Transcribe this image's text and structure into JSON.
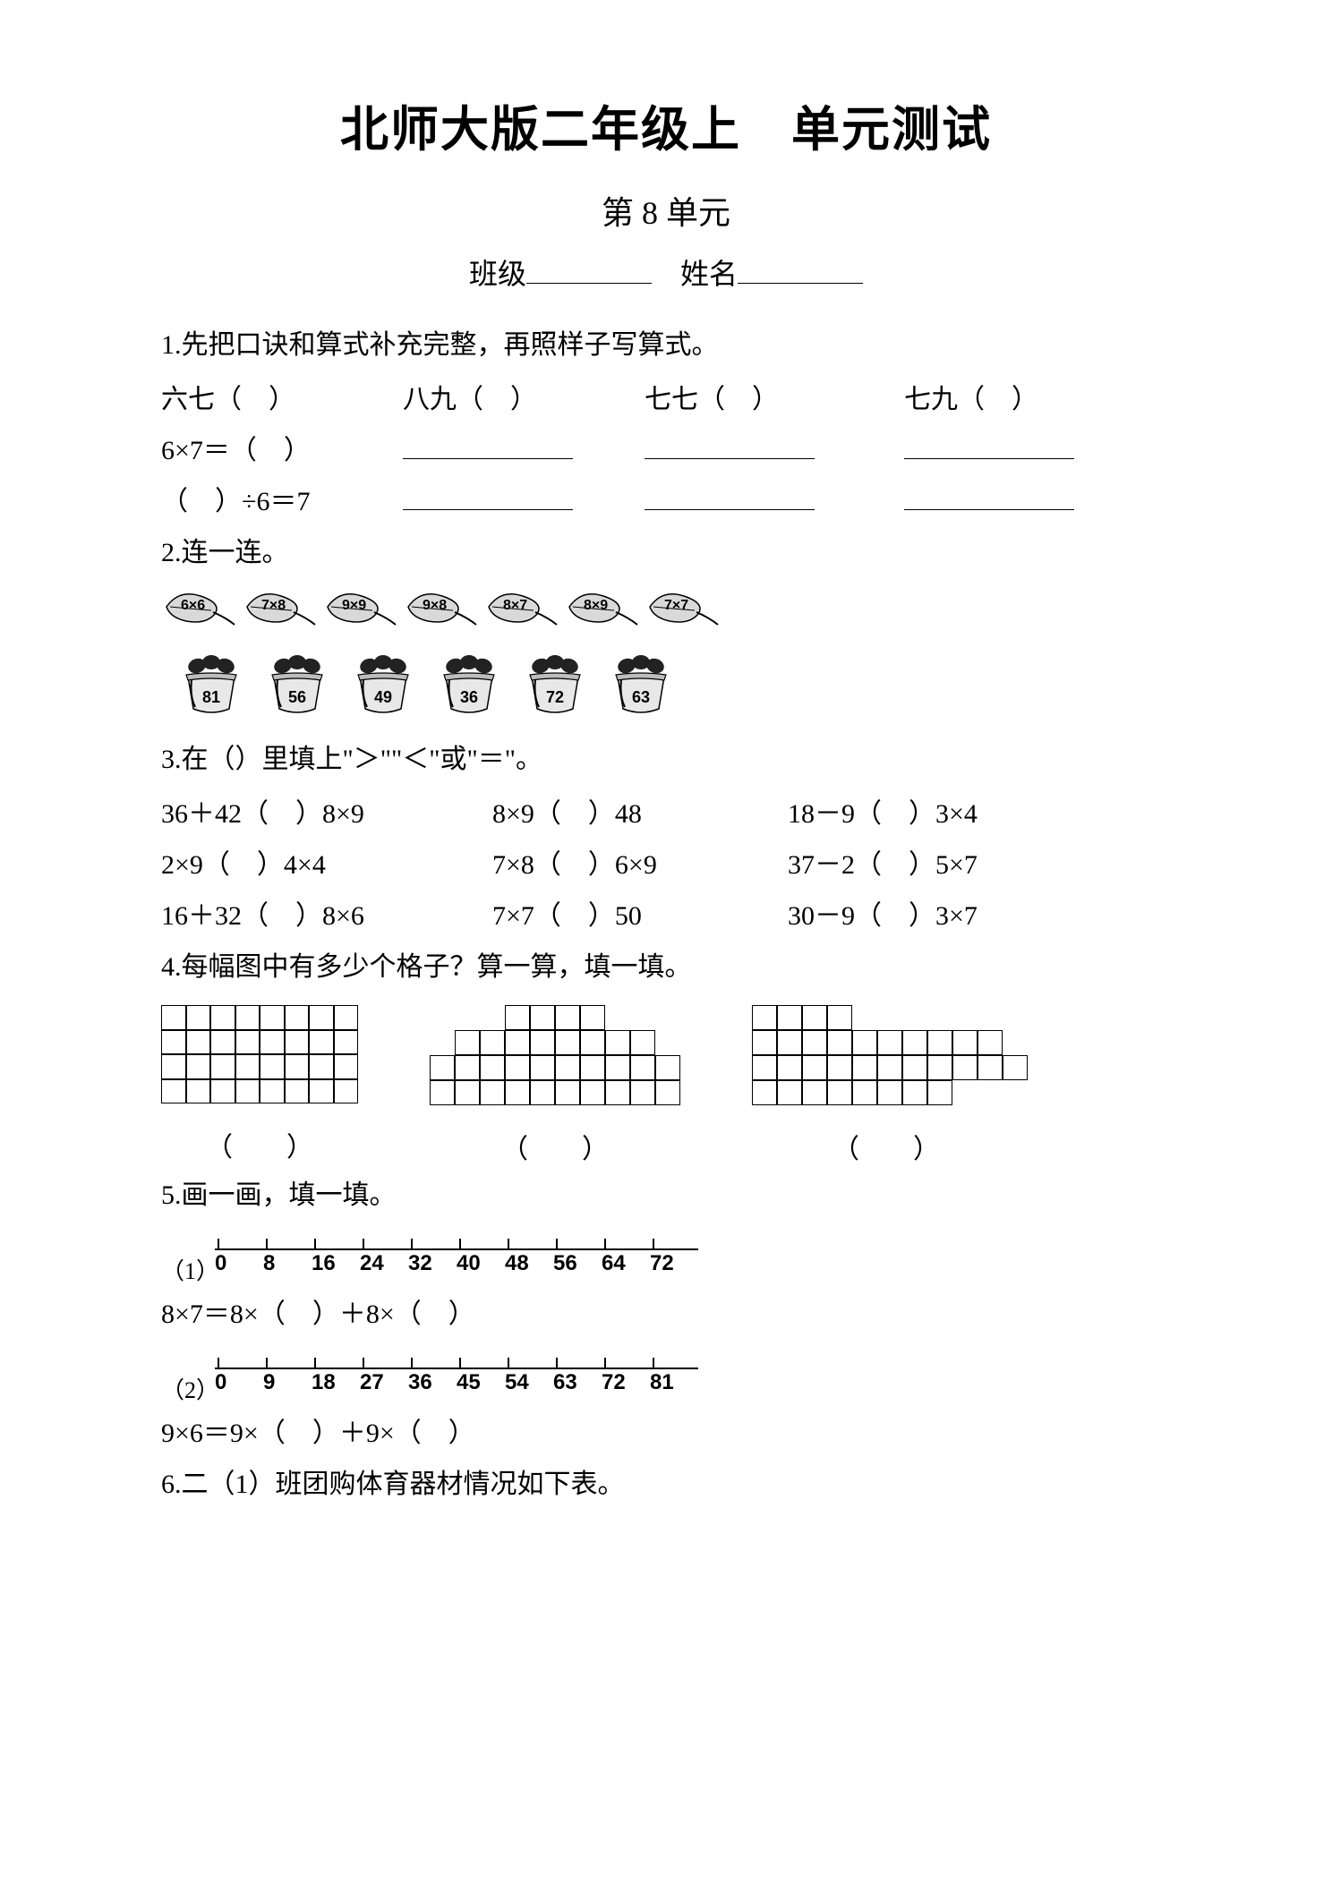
{
  "title_main": "北师大版二年级上　单元测试",
  "title_sub": "第 8 单元",
  "info": {
    "class_label": "班级",
    "name_label": "姓名"
  },
  "q1": {
    "prompt": "1.先把口诀和算式补充完整，再照样子写算式。",
    "row1": [
      "六七（　）",
      "八九（　）",
      "七七（　）",
      "七九（　）"
    ],
    "row2_first": "6×7＝（　）",
    "row3_first": "（　）÷6＝7"
  },
  "q2": {
    "prompt": "2.连一连。",
    "leaves": [
      "6×6",
      "7×8",
      "9×9",
      "9×8",
      "8×7",
      "8×9",
      "7×7"
    ],
    "pots": [
      "81",
      "56",
      "49",
      "36",
      "72",
      "63"
    ]
  },
  "q3": {
    "prompt": "3.在（）里填上\"＞\"\"＜\"或\"＝\"。",
    "rows": [
      [
        "36＋42（　）8×9",
        "8×9（　）48",
        "18－9（　）3×4"
      ],
      [
        "2×9（　）4×4",
        "7×8（　）6×9",
        "37－2（　）5×7"
      ],
      [
        "16＋32（　）8×6",
        "7×7（　）50",
        "30－9（　）3×7"
      ]
    ]
  },
  "q4": {
    "prompt": "4.每幅图中有多少个格子？算一算，填一填。",
    "answer_placeholder": "（　　）"
  },
  "q5": {
    "prompt": "5.画一画，填一填。",
    "line1": {
      "idx": "（1）",
      "labels": [
        "0",
        "8",
        "16",
        "24",
        "32",
        "40",
        "48",
        "56",
        "64",
        "72"
      ],
      "eq": "8×7＝8×（　）＋8×（　）"
    },
    "line2": {
      "idx": "（2）",
      "labels": [
        "0",
        "9",
        "18",
        "27",
        "36",
        "45",
        "54",
        "63",
        "72",
        "81"
      ],
      "eq": "9×6＝9×（　）＋9×（　）"
    }
  },
  "q6": {
    "prompt": "6.二（1）班团购体育器材情况如下表。"
  },
  "style": {
    "text_color": "#000000",
    "background": "#ffffff",
    "title_fontsize": 54,
    "body_fontsize": 30,
    "numline_tick_spacing": 54,
    "numline_tick_count": 10,
    "leaf_fill": "#d9d9d9",
    "leaf_stroke": "#000000",
    "pot_fill": "#e8e8e8",
    "pot_leaf_fill": "#222222"
  }
}
